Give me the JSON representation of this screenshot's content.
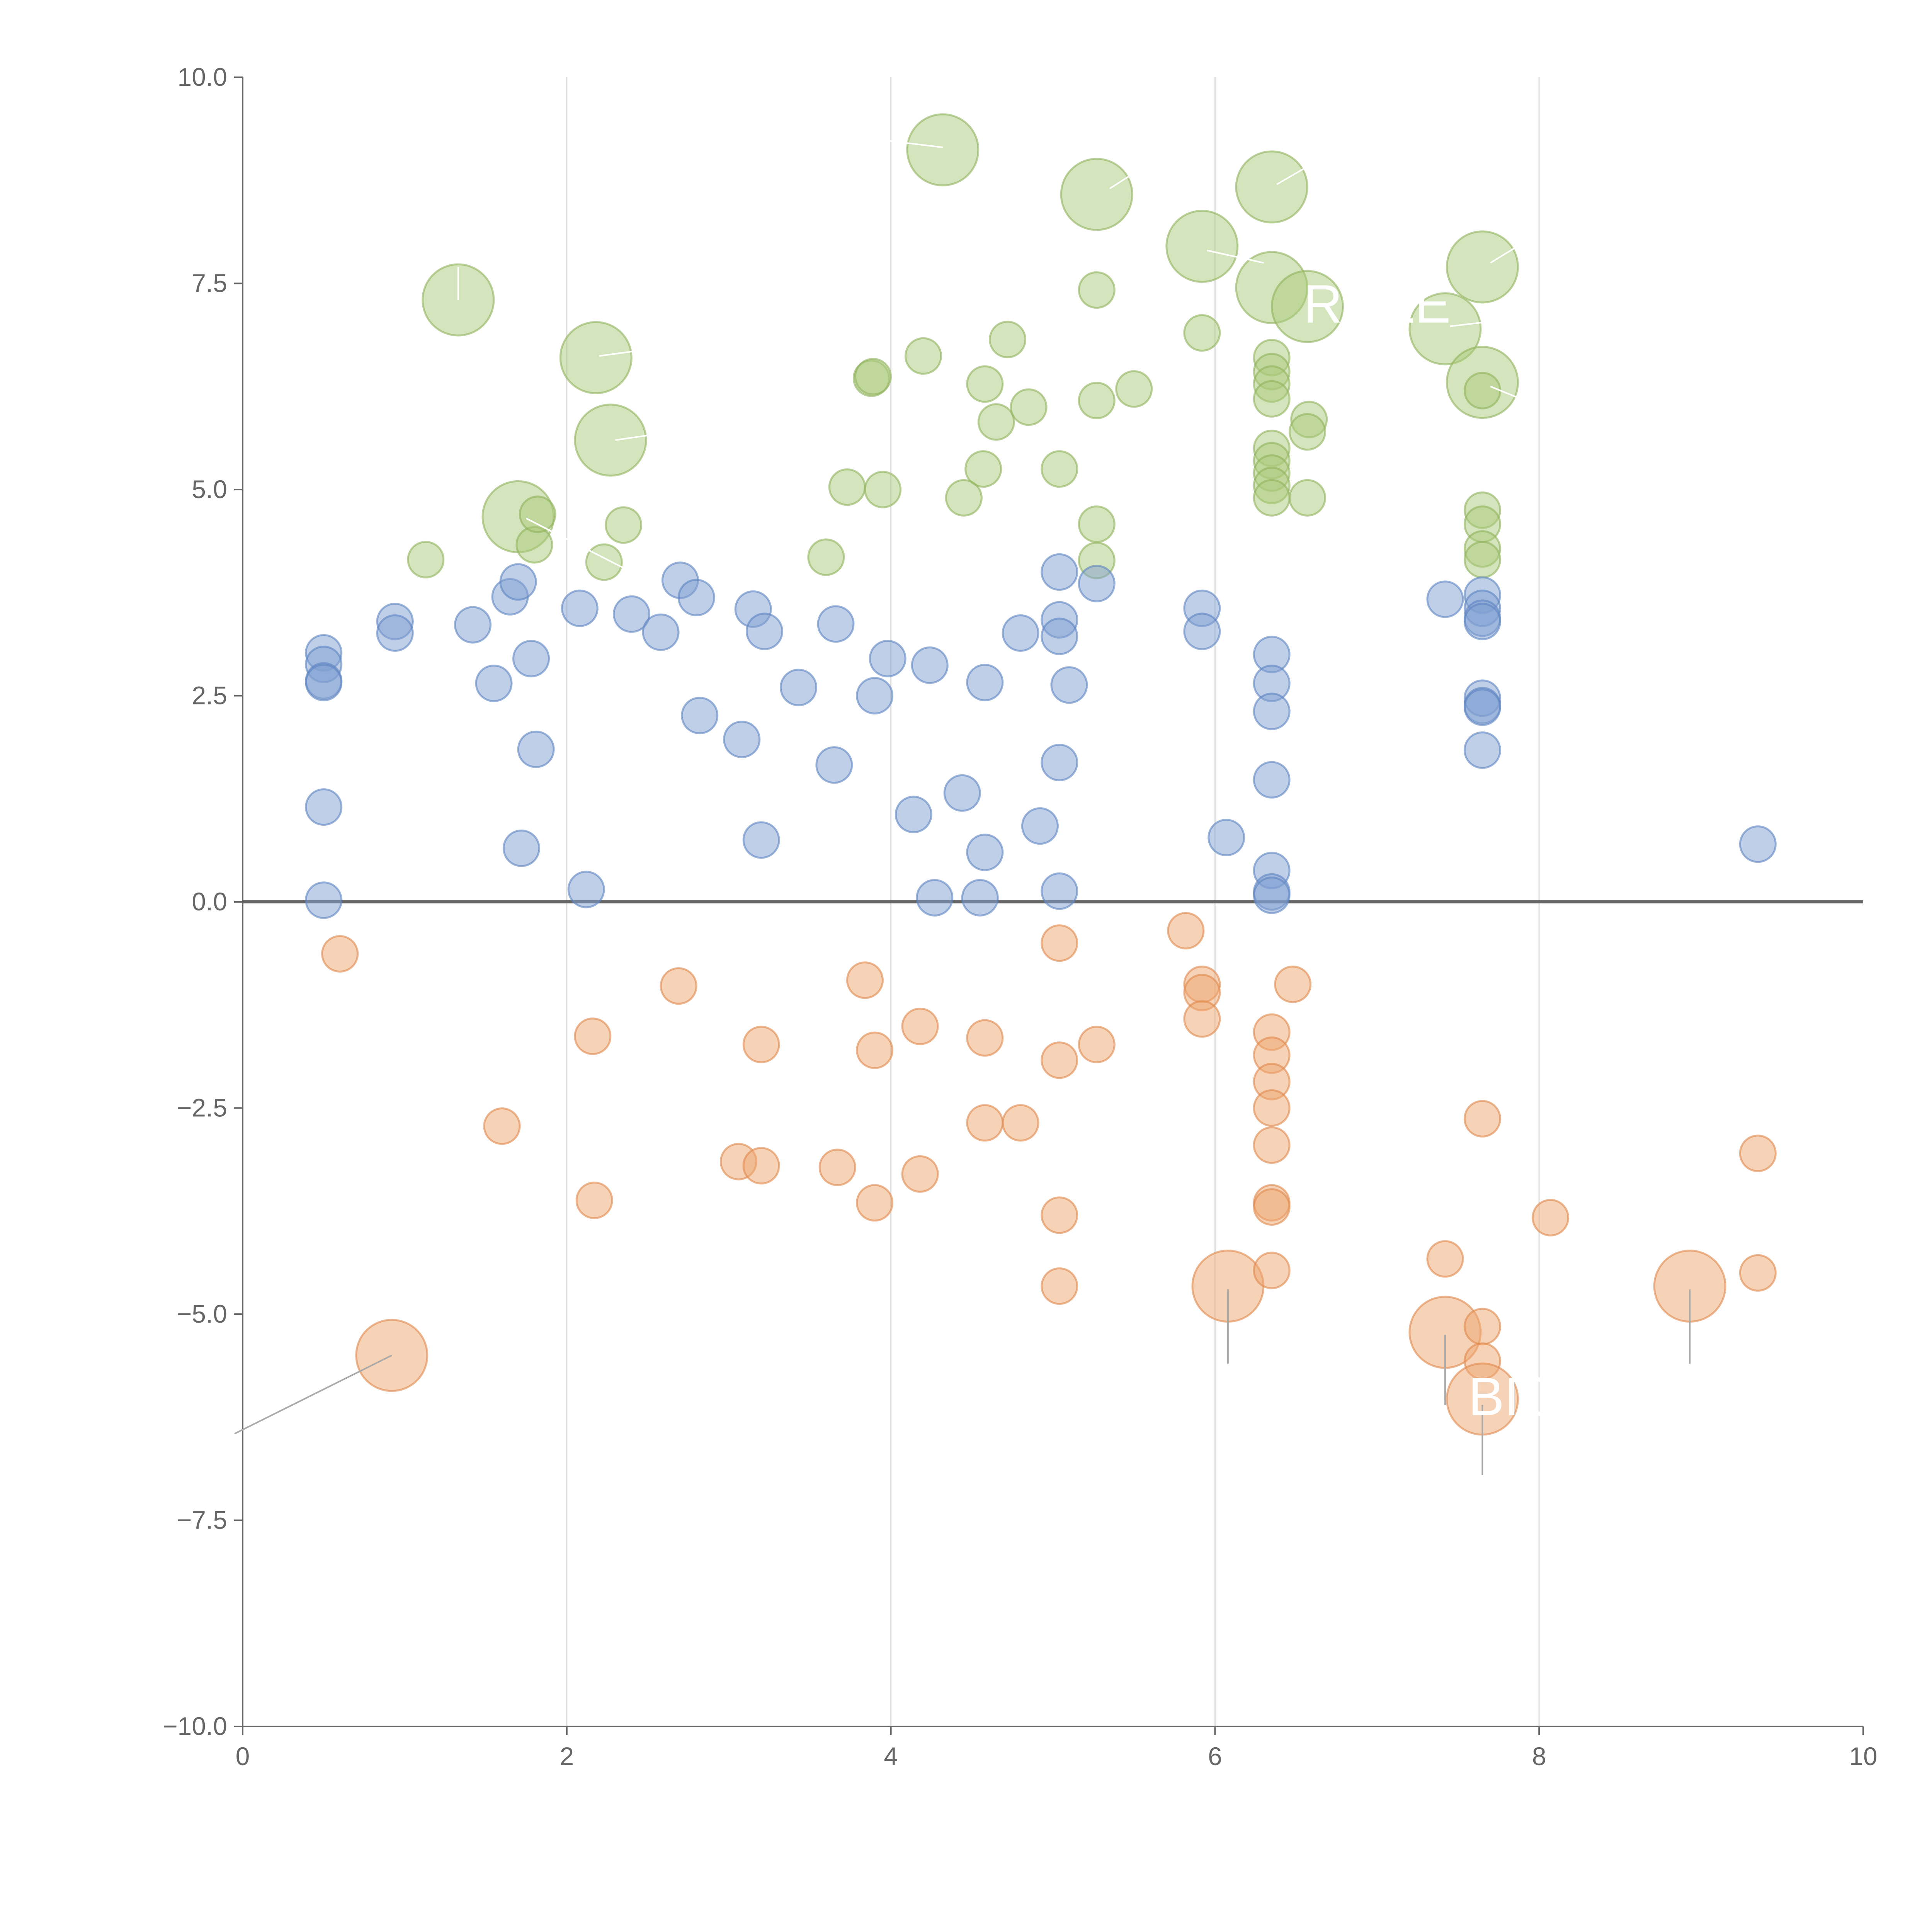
{
  "chart_data": {
    "type": "scatter",
    "subtype": "bubble",
    "title": "",
    "xlabel": "",
    "ylabel": "",
    "xlim": [
      0,
      10
    ],
    "ylim": [
      -10,
      10
    ],
    "x_ticks": [
      "0",
      "2",
      "4",
      "6",
      "8",
      "10"
    ],
    "y_ticks": [
      "−10.0",
      "−7.5",
      "−5.0",
      "−2.5",
      "0.0",
      "2.5",
      "5.0",
      "7.5",
      "10.0"
    ],
    "x_tick_values": [
      0,
      2,
      4,
      6,
      8,
      10
    ],
    "y_tick_values": [
      -10,
      -7.5,
      -5,
      -2.5,
      0,
      2.5,
      5,
      7.5,
      10
    ],
    "grid": "vertical lines at x ticks",
    "reference_line_y": 0,
    "colors": {
      "green_fill": "#a9c97a",
      "green_stroke": "#8fb35c",
      "blue_fill": "#7f9fd2",
      "blue_stroke": "#5e84c2",
      "orange_fill": "#eea56f",
      "orange_stroke": "#e0894c",
      "grid": "#dddddd",
      "axis": "#666666"
    },
    "series": [
      {
        "name": "green",
        "color": "#a9c97a",
        "points": [
          {
            "x": 1.33,
            "y": 7.3,
            "s": 2
          },
          {
            "x": 2.18,
            "y": 6.6,
            "s": 2
          },
          {
            "x": 2.27,
            "y": 5.6,
            "s": 2
          },
          {
            "x": 1.7,
            "y": 4.67,
            "s": 2
          },
          {
            "x": 1.13,
            "y": 4.15,
            "s": 1
          },
          {
            "x": 1.8,
            "y": 4.33,
            "s": 1
          },
          {
            "x": 1.82,
            "y": 4.7,
            "s": 1
          },
          {
            "x": 2.35,
            "y": 4.57,
            "s": 1
          },
          {
            "x": 2.23,
            "y": 4.12,
            "s": 1
          },
          {
            "x": 3.6,
            "y": 4.18,
            "s": 1
          },
          {
            "x": 3.73,
            "y": 5.03,
            "s": 1
          },
          {
            "x": 3.95,
            "y": 5.0,
            "s": 1
          },
          {
            "x": 3.88,
            "y": 6.35,
            "s": 1
          },
          {
            "x": 3.89,
            "y": 6.37,
            "s": 1
          },
          {
            "x": 4.2,
            "y": 6.62,
            "s": 1
          },
          {
            "x": 4.32,
            "y": 9.12,
            "s": 2
          },
          {
            "x": 4.58,
            "y": 6.28,
            "s": 1
          },
          {
            "x": 4.57,
            "y": 5.25,
            "s": 1
          },
          {
            "x": 4.45,
            "y": 4.9,
            "s": 1
          },
          {
            "x": 4.72,
            "y": 6.82,
            "s": 1
          },
          {
            "x": 4.65,
            "y": 5.82,
            "s": 1
          },
          {
            "x": 4.85,
            "y": 6.0,
            "s": 1
          },
          {
            "x": 5.04,
            "y": 5.25,
            "s": 1
          },
          {
            "x": 5.27,
            "y": 7.42,
            "s": 1
          },
          {
            "x": 5.27,
            "y": 6.08,
            "s": 1
          },
          {
            "x": 5.5,
            "y": 6.22,
            "s": 1
          },
          {
            "x": 5.27,
            "y": 4.58,
            "s": 1
          },
          {
            "x": 5.27,
            "y": 4.14,
            "s": 1
          },
          {
            "x": 5.27,
            "y": 8.58,
            "s": 2
          },
          {
            "x": 5.92,
            "y": 7.95,
            "s": 2
          },
          {
            "x": 5.92,
            "y": 6.9,
            "s": 1
          },
          {
            "x": 6.35,
            "y": 8.67,
            "s": 2
          },
          {
            "x": 6.35,
            "y": 7.45,
            "s": 2
          },
          {
            "x": 6.57,
            "y": 7.22,
            "s": 2
          },
          {
            "x": 6.35,
            "y": 6.6,
            "s": 1
          },
          {
            "x": 6.35,
            "y": 6.43,
            "s": 1
          },
          {
            "x": 6.35,
            "y": 6.28,
            "s": 1
          },
          {
            "x": 6.35,
            "y": 6.1,
            "s": 1
          },
          {
            "x": 6.58,
            "y": 5.85,
            "s": 1
          },
          {
            "x": 6.57,
            "y": 5.7,
            "s": 1
          },
          {
            "x": 6.35,
            "y": 5.5,
            "s": 1
          },
          {
            "x": 6.35,
            "y": 5.35,
            "s": 1
          },
          {
            "x": 6.35,
            "y": 5.2,
            "s": 1
          },
          {
            "x": 6.35,
            "y": 5.05,
            "s": 1
          },
          {
            "x": 6.35,
            "y": 4.9,
            "s": 1
          },
          {
            "x": 6.57,
            "y": 4.9,
            "s": 1
          },
          {
            "x": 7.42,
            "y": 6.95,
            "s": 2
          },
          {
            "x": 7.65,
            "y": 7.7,
            "s": 2
          },
          {
            "x": 7.65,
            "y": 6.3,
            "s": 2
          },
          {
            "x": 7.65,
            "y": 6.2,
            "s": 1
          },
          {
            "x": 7.65,
            "y": 4.75,
            "s": 1
          },
          {
            "x": 7.65,
            "y": 4.58,
            "s": 1
          },
          {
            "x": 7.65,
            "y": 4.28,
            "s": 1
          },
          {
            "x": 7.65,
            "y": 4.15,
            "s": 1
          }
        ]
      },
      {
        "name": "blue",
        "color": "#7f9fd2",
        "points": [
          {
            "x": 0.5,
            "y": 3.02,
            "s": 1
          },
          {
            "x": 0.5,
            "y": 2.88,
            "s": 1
          },
          {
            "x": 0.5,
            "y": 2.68,
            "s": 1
          },
          {
            "x": 0.5,
            "y": 2.66,
            "s": 1
          },
          {
            "x": 0.5,
            "y": 1.15,
            "s": 1
          },
          {
            "x": 0.5,
            "y": 0.02,
            "s": 1
          },
          {
            "x": 0.94,
            "y": 3.4,
            "s": 1
          },
          {
            "x": 0.94,
            "y": 3.26,
            "s": 1
          },
          {
            "x": 1.42,
            "y": 3.36,
            "s": 1
          },
          {
            "x": 1.55,
            "y": 2.65,
            "s": 1
          },
          {
            "x": 1.65,
            "y": 3.7,
            "s": 1
          },
          {
            "x": 1.7,
            "y": 3.88,
            "s": 1
          },
          {
            "x": 1.78,
            "y": 2.95,
            "s": 1
          },
          {
            "x": 1.81,
            "y": 1.85,
            "s": 1
          },
          {
            "x": 1.72,
            "y": 0.65,
            "s": 1
          },
          {
            "x": 2.08,
            "y": 3.56,
            "s": 1
          },
          {
            "x": 2.12,
            "y": 0.15,
            "s": 1
          },
          {
            "x": 2.4,
            "y": 3.49,
            "s": 1
          },
          {
            "x": 2.58,
            "y": 3.27,
            "s": 1
          },
          {
            "x": 2.7,
            "y": 3.9,
            "s": 1
          },
          {
            "x": 2.8,
            "y": 3.69,
            "s": 1
          },
          {
            "x": 2.82,
            "y": 2.26,
            "s": 1
          },
          {
            "x": 3.08,
            "y": 1.97,
            "s": 1
          },
          {
            "x": 3.15,
            "y": 3.55,
            "s": 1
          },
          {
            "x": 3.22,
            "y": 3.28,
            "s": 1
          },
          {
            "x": 3.2,
            "y": 0.75,
            "s": 1
          },
          {
            "x": 3.43,
            "y": 2.6,
            "s": 1
          },
          {
            "x": 3.66,
            "y": 3.37,
            "s": 1
          },
          {
            "x": 3.65,
            "y": 1.66,
            "s": 1
          },
          {
            "x": 3.9,
            "y": 2.5,
            "s": 1
          },
          {
            "x": 3.98,
            "y": 2.95,
            "s": 1
          },
          {
            "x": 4.14,
            "y": 1.06,
            "s": 1
          },
          {
            "x": 4.24,
            "y": 2.87,
            "s": 1
          },
          {
            "x": 4.27,
            "y": 0.05,
            "s": 1
          },
          {
            "x": 4.44,
            "y": 1.32,
            "s": 1
          },
          {
            "x": 4.55,
            "y": 0.05,
            "s": 1
          },
          {
            "x": 4.58,
            "y": 2.66,
            "s": 1
          },
          {
            "x": 4.58,
            "y": 0.6,
            "s": 1
          },
          {
            "x": 4.8,
            "y": 3.26,
            "s": 1
          },
          {
            "x": 4.92,
            "y": 0.92,
            "s": 1
          },
          {
            "x": 5.04,
            "y": 4.0,
            "s": 1
          },
          {
            "x": 5.04,
            "y": 3.42,
            "s": 1
          },
          {
            "x": 5.04,
            "y": 3.22,
            "s": 1
          },
          {
            "x": 5.04,
            "y": 1.69,
            "s": 1
          },
          {
            "x": 5.04,
            "y": 0.13,
            "s": 1
          },
          {
            "x": 5.1,
            "y": 2.63,
            "s": 1
          },
          {
            "x": 5.27,
            "y": 3.86,
            "s": 1
          },
          {
            "x": 5.92,
            "y": 3.56,
            "s": 1
          },
          {
            "x": 5.92,
            "y": 3.28,
            "s": 1
          },
          {
            "x": 6.07,
            "y": 0.78,
            "s": 1
          },
          {
            "x": 6.35,
            "y": 3.0,
            "s": 1
          },
          {
            "x": 6.35,
            "y": 2.65,
            "s": 1
          },
          {
            "x": 6.35,
            "y": 2.31,
            "s": 1
          },
          {
            "x": 6.35,
            "y": 1.48,
            "s": 1
          },
          {
            "x": 6.35,
            "y": 0.38,
            "s": 1
          },
          {
            "x": 6.35,
            "y": 0.12,
            "s": 1
          },
          {
            "x": 6.35,
            "y": 0.08,
            "s": 1
          },
          {
            "x": 7.42,
            "y": 3.67,
            "s": 1
          },
          {
            "x": 7.65,
            "y": 3.72,
            "s": 1
          },
          {
            "x": 7.65,
            "y": 3.56,
            "s": 1
          },
          {
            "x": 7.65,
            "y": 3.44,
            "s": 1
          },
          {
            "x": 7.65,
            "y": 3.4,
            "s": 1
          },
          {
            "x": 7.65,
            "y": 2.47,
            "s": 1
          },
          {
            "x": 7.65,
            "y": 2.38,
            "s": 1
          },
          {
            "x": 7.65,
            "y": 2.36,
            "s": 1
          },
          {
            "x": 7.65,
            "y": 1.84,
            "s": 1
          },
          {
            "x": 9.35,
            "y": 0.7,
            "s": 1
          }
        ]
      },
      {
        "name": "orange",
        "color": "#eea56f",
        "points": [
          {
            "x": 0.6,
            "y": -0.63,
            "s": 1
          },
          {
            "x": 0.92,
            "y": -5.5,
            "s": 2
          },
          {
            "x": 1.6,
            "y": -2.72,
            "s": 1
          },
          {
            "x": 2.16,
            "y": -1.63,
            "s": 1
          },
          {
            "x": 2.17,
            "y": -3.62,
            "s": 1
          },
          {
            "x": 2.69,
            "y": -1.02,
            "s": 1
          },
          {
            "x": 3.06,
            "y": -3.15,
            "s": 1
          },
          {
            "x": 3.2,
            "y": -1.73,
            "s": 1
          },
          {
            "x": 3.2,
            "y": -3.2,
            "s": 1
          },
          {
            "x": 3.67,
            "y": -3.22,
            "s": 1
          },
          {
            "x": 3.84,
            "y": -0.95,
            "s": 1
          },
          {
            "x": 3.9,
            "y": -1.8,
            "s": 1
          },
          {
            "x": 3.9,
            "y": -3.65,
            "s": 1
          },
          {
            "x": 4.18,
            "y": -1.51,
            "s": 1
          },
          {
            "x": 4.18,
            "y": -3.3,
            "s": 1
          },
          {
            "x": 4.58,
            "y": -1.65,
            "s": 1
          },
          {
            "x": 4.58,
            "y": -2.68,
            "s": 1
          },
          {
            "x": 4.8,
            "y": -2.68,
            "s": 1
          },
          {
            "x": 5.04,
            "y": -0.5,
            "s": 1
          },
          {
            "x": 5.04,
            "y": -1.92,
            "s": 1
          },
          {
            "x": 5.04,
            "y": -3.8,
            "s": 1
          },
          {
            "x": 5.04,
            "y": -4.66,
            "s": 1
          },
          {
            "x": 5.27,
            "y": -1.73,
            "s": 1
          },
          {
            "x": 5.82,
            "y": -0.35,
            "s": 1
          },
          {
            "x": 5.92,
            "y": -1.0,
            "s": 1
          },
          {
            "x": 5.92,
            "y": -1.1,
            "s": 1
          },
          {
            "x": 5.92,
            "y": -1.42,
            "s": 1
          },
          {
            "x": 6.08,
            "y": -4.66,
            "s": 2
          },
          {
            "x": 6.35,
            "y": -1.58,
            "s": 1
          },
          {
            "x": 6.35,
            "y": -1.86,
            "s": 1
          },
          {
            "x": 6.35,
            "y": -2.18,
            "s": 1
          },
          {
            "x": 6.35,
            "y": -2.5,
            "s": 1
          },
          {
            "x": 6.35,
            "y": -2.95,
            "s": 1
          },
          {
            "x": 6.35,
            "y": -3.65,
            "s": 1
          },
          {
            "x": 6.35,
            "y": -3.7,
            "s": 1
          },
          {
            "x": 6.35,
            "y": -4.47,
            "s": 1
          },
          {
            "x": 6.48,
            "y": -1.0,
            "s": 1
          },
          {
            "x": 7.42,
            "y": -4.33,
            "s": 1
          },
          {
            "x": 7.42,
            "y": -5.22,
            "s": 2
          },
          {
            "x": 7.65,
            "y": -2.63,
            "s": 1
          },
          {
            "x": 7.65,
            "y": -5.15,
            "s": 1
          },
          {
            "x": 7.65,
            "y": -5.57,
            "s": 1
          },
          {
            "x": 7.65,
            "y": -6.03,
            "s": 2
          },
          {
            "x": 8.07,
            "y": -3.83,
            "s": 1
          },
          {
            "x": 8.93,
            "y": -4.66,
            "s": 2
          },
          {
            "x": 9.35,
            "y": -3.05,
            "s": 1
          },
          {
            "x": 9.35,
            "y": -4.5,
            "s": 1
          }
        ]
      }
    ],
    "annotations": [
      {
        "text": "ROLE",
        "x": 7.0,
        "y": 7.25
      },
      {
        "text": "BIO",
        "x": 7.85,
        "y": -6.0
      }
    ]
  }
}
